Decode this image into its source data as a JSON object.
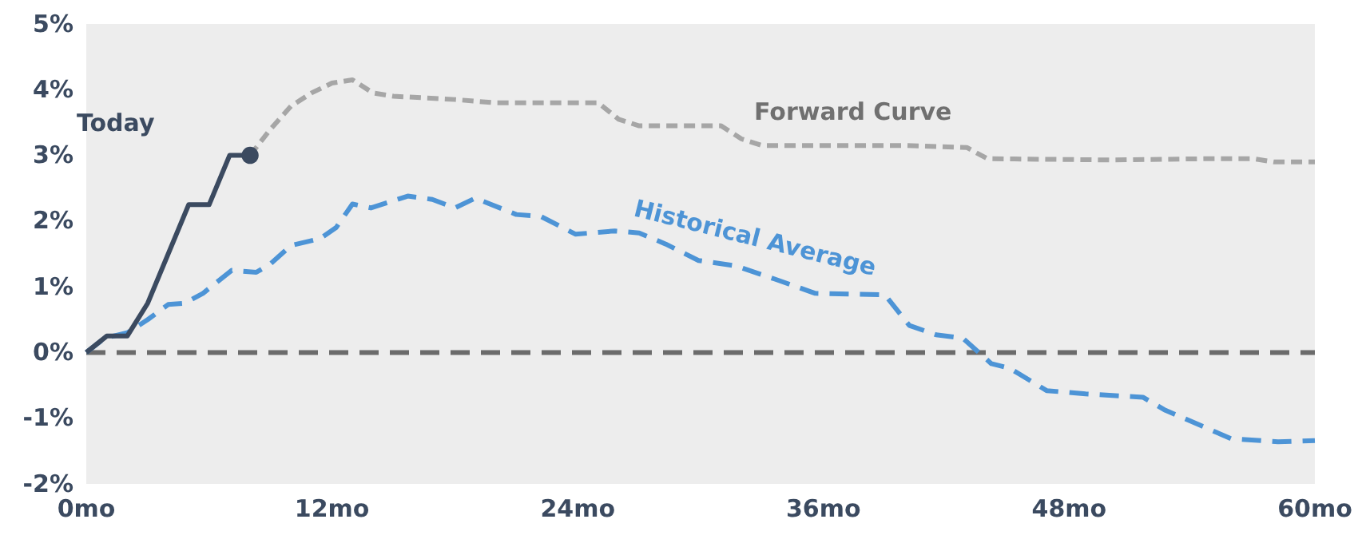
{
  "chart_data": {
    "type": "line",
    "xlim": [
      0,
      60
    ],
    "ylim": [
      -2,
      5
    ],
    "xticks": [
      {
        "value": 0,
        "label": "0mo"
      },
      {
        "value": 12,
        "label": "12mo"
      },
      {
        "value": 24,
        "label": "24mo"
      },
      {
        "value": 36,
        "label": "36mo"
      },
      {
        "value": 48,
        "label": "48mo"
      },
      {
        "value": 60,
        "label": "60mo"
      }
    ],
    "yticks": [
      {
        "value": -2,
        "label": "-2%"
      },
      {
        "value": -1,
        "label": "-1%"
      },
      {
        "value": 0,
        "label": "0%"
      },
      {
        "value": 1,
        "label": "1%"
      },
      {
        "value": 2,
        "label": "2%"
      },
      {
        "value": 3,
        "label": "3%"
      },
      {
        "value": 4,
        "label": "4%"
      },
      {
        "value": 5,
        "label": "5%"
      }
    ],
    "grid": false,
    "ref_lines": [
      {
        "axis": "y",
        "value": 0,
        "color": "#6b6b6b",
        "line_style": "dashed"
      }
    ],
    "series": [
      {
        "color": "#a6a6a6",
        "line_style": "dotted",
        "x": [
          8,
          9,
          10,
          11,
          12,
          13,
          14,
          15,
          18,
          20,
          25,
          26,
          27,
          31,
          32,
          33,
          40,
          43,
          44,
          50,
          55,
          57,
          58,
          60
        ],
        "values": [
          3,
          3.4,
          3.75,
          3.95,
          4.1,
          4.15,
          3.95,
          3.9,
          3.85,
          3.8,
          3.8,
          3.55,
          3.45,
          3.45,
          3.25,
          3.15,
          3.15,
          3.12,
          2.95,
          2.93,
          2.95,
          2.95,
          2.9,
          2.9
        ]
      },
      {
        "color": "#4d94d6",
        "line_style": "dashed",
        "x": [
          0,
          0.9,
          2,
          3,
          4,
          4.8,
          5.7,
          7.1,
          8.3,
          9,
          10,
          11.4,
          12.2,
          13,
          13.9,
          15.7,
          16.9,
          18,
          19,
          21,
          22.2,
          23.9,
          25.8,
          27,
          28.3,
          29.9,
          31.7,
          33.6,
          35.6,
          39,
          40.2,
          41.5,
          42.8,
          44.2,
          45.1,
          46.9,
          48.8,
          51.6,
          52.7,
          55.9,
          58.2,
          60
        ],
        "values": [
          0,
          0.22,
          0.3,
          0.5,
          0.73,
          0.75,
          0.9,
          1.25,
          1.22,
          1.35,
          1.63,
          1.73,
          1.9,
          2.26,
          2.2,
          2.38,
          2.33,
          2.2,
          2.35,
          2.1,
          2.07,
          1.8,
          1.85,
          1.82,
          1.65,
          1.4,
          1.32,
          1.12,
          0.9,
          0.88,
          0.41,
          0.27,
          0.22,
          -0.17,
          -0.24,
          -0.58,
          -0.63,
          -0.68,
          -0.88,
          -1.31,
          -1.36,
          -1.34
        ]
      },
      {
        "color": "#3b4a60",
        "line_style": "solid",
        "x": [
          0,
          1,
          2,
          3,
          5,
          6,
          7,
          8
        ],
        "values": [
          0,
          0.25,
          0.25,
          0.75,
          2.25,
          2.25,
          3,
          3
        ]
      },
      {
        "type": "scatter",
        "color": "#3b4a60",
        "marker": "circle",
        "x": [
          8
        ],
        "values": [
          3
        ]
      }
    ],
    "annotations": [
      "Today",
      "Forward Curve",
      "Historical Average"
    ]
  }
}
